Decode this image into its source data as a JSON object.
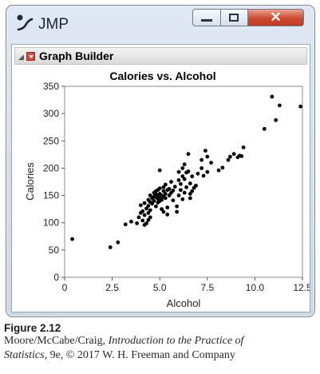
{
  "window": {
    "app_title": "JMP",
    "close_label": "✕",
    "logo_icon": "jmp-logo-icon",
    "accent_close": "#cc4a2d"
  },
  "report": {
    "outline_title": "Graph Builder",
    "disclosure_icon": "triangle-down-icon",
    "menu_icon": "red-triangle-menu-icon"
  },
  "chart_data": {
    "type": "scatter",
    "title": "Calories vs. Alcohol",
    "xlabel": "Alcohol",
    "ylabel": "Calories",
    "xlim": [
      0,
      12.5
    ],
    "ylim": [
      0,
      350
    ],
    "xticks": [
      "0",
      "2.5",
      "5.0",
      "7.5",
      "10.0",
      "12.5"
    ],
    "yticks": [
      "0",
      "50",
      "100",
      "150",
      "200",
      "250",
      "300",
      "350"
    ],
    "grid": false,
    "point_color": "#000000",
    "points": [
      [
        0.4,
        70
      ],
      [
        2.4,
        55
      ],
      [
        2.8,
        64
      ],
      [
        3.2,
        97
      ],
      [
        3.5,
        102
      ],
      [
        3.8,
        99
      ],
      [
        3.9,
        110
      ],
      [
        4.0,
        118
      ],
      [
        4.0,
        132
      ],
      [
        4.1,
        104
      ],
      [
        4.1,
        121
      ],
      [
        4.2,
        96
      ],
      [
        4.2,
        114
      ],
      [
        4.2,
        136
      ],
      [
        4.3,
        99
      ],
      [
        4.3,
        126
      ],
      [
        4.4,
        105
      ],
      [
        4.4,
        118
      ],
      [
        4.4,
        131
      ],
      [
        4.4,
        142
      ],
      [
        4.5,
        110
      ],
      [
        4.5,
        123
      ],
      [
        4.5,
        138
      ],
      [
        4.5,
        150
      ],
      [
        4.6,
        145
      ],
      [
        4.6,
        135
      ],
      [
        4.7,
        140
      ],
      [
        4.7,
        155
      ],
      [
        4.7,
        148
      ],
      [
        4.8,
        147
      ],
      [
        4.8,
        152
      ],
      [
        4.8,
        130
      ],
      [
        4.8,
        158
      ],
      [
        4.9,
        150
      ],
      [
        4.9,
        144
      ],
      [
        4.9,
        160
      ],
      [
        4.9,
        137
      ],
      [
        5.0,
        145
      ],
      [
        5.0,
        153
      ],
      [
        5.0,
        163
      ],
      [
        5.0,
        140
      ],
      [
        5.0,
        196
      ],
      [
        5.1,
        150
      ],
      [
        5.1,
        142
      ],
      [
        5.1,
        125
      ],
      [
        5.2,
        158
      ],
      [
        5.2,
        148
      ],
      [
        5.2,
        165
      ],
      [
        5.2,
        120
      ],
      [
        5.3,
        153
      ],
      [
        5.3,
        145
      ],
      [
        5.3,
        170
      ],
      [
        5.4,
        160
      ],
      [
        5.4,
        128
      ],
      [
        5.4,
        115
      ],
      [
        5.5,
        150
      ],
      [
        5.5,
        162
      ],
      [
        5.6,
        155
      ],
      [
        5.6,
        175
      ],
      [
        5.7,
        141
      ],
      [
        5.7,
        159
      ],
      [
        5.8,
        166
      ],
      [
        5.9,
        130
      ],
      [
        5.9,
        120
      ],
      [
        6.0,
        150
      ],
      [
        6.0,
        178
      ],
      [
        6.0,
        193
      ],
      [
        6.1,
        171
      ],
      [
        6.1,
        160
      ],
      [
        6.2,
        143
      ],
      [
        6.2,
        200
      ],
      [
        6.2,
        185
      ],
      [
        6.3,
        155
      ],
      [
        6.3,
        207
      ],
      [
        6.3,
        180
      ],
      [
        6.4,
        165
      ],
      [
        6.4,
        192
      ],
      [
        6.5,
        194
      ],
      [
        6.5,
        226
      ],
      [
        6.6,
        172
      ],
      [
        6.6,
        145
      ],
      [
        6.6,
        153
      ],
      [
        6.7,
        158
      ],
      [
        6.7,
        185
      ],
      [
        6.8,
        164
      ],
      [
        6.9,
        168
      ],
      [
        7.0,
        190
      ],
      [
        7.2,
        200
      ],
      [
        7.2,
        215
      ],
      [
        7.3,
        186
      ],
      [
        7.4,
        232
      ],
      [
        7.5,
        193
      ],
      [
        7.5,
        221
      ],
      [
        7.7,
        210
      ],
      [
        8.1,
        196
      ],
      [
        8.3,
        201
      ],
      [
        8.6,
        215
      ],
      [
        8.7,
        221
      ],
      [
        8.9,
        226
      ],
      [
        9.1,
        220
      ],
      [
        9.3,
        222
      ],
      [
        9.4,
        238
      ],
      [
        9.2,
        223
      ],
      [
        10.5,
        272
      ],
      [
        10.9,
        331
      ],
      [
        11.1,
        288
      ],
      [
        11.3,
        315
      ],
      [
        12.4,
        313
      ]
    ]
  },
  "caption": {
    "figure_number": "Figure 2.12",
    "line1": "Moore/McCabe/Craig, ",
    "book_title_part1": "Introduction to the Practice of",
    "book_title_part2": "Statistics",
    "line2_rest": ", 9e, © 2017 W. H. Freeman and Company"
  }
}
